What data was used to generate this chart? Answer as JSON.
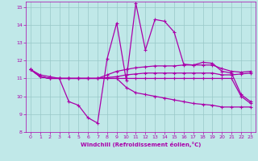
{
  "xlabel": "Windchill (Refroidissement éolien,°C)",
  "xlim": [
    -0.5,
    23.5
  ],
  "ylim": [
    8,
    15.3
  ],
  "xticks": [
    0,
    1,
    2,
    3,
    4,
    5,
    6,
    7,
    8,
    9,
    10,
    11,
    12,
    13,
    14,
    15,
    16,
    17,
    18,
    19,
    20,
    21,
    22,
    23
  ],
  "yticks": [
    8,
    9,
    10,
    11,
    12,
    13,
    14,
    15
  ],
  "bg_color": "#c0e8e8",
  "grid_color": "#98c8c8",
  "line_color": "#aa00aa",
  "line1_x": [
    0,
    1,
    2,
    3,
    4,
    5,
    6,
    7,
    8,
    9,
    10,
    11,
    12,
    13,
    14,
    15,
    16,
    17,
    18,
    19,
    20,
    21,
    22,
    23
  ],
  "line1_y": [
    11.5,
    11.2,
    11.1,
    11.0,
    9.7,
    9.5,
    8.8,
    8.5,
    12.1,
    14.1,
    10.9,
    15.2,
    12.6,
    14.3,
    14.2,
    13.6,
    11.8,
    11.75,
    11.9,
    11.85,
    11.4,
    11.3,
    10.1,
    9.7
  ],
  "line2_x": [
    0,
    1,
    2,
    3,
    4,
    5,
    6,
    7,
    8,
    9,
    10,
    11,
    12,
    13,
    14,
    15,
    16,
    17,
    18,
    19,
    20,
    21,
    22,
    23
  ],
  "line2_y": [
    11.5,
    11.1,
    11.0,
    11.0,
    11.0,
    11.0,
    11.0,
    11.0,
    11.2,
    11.4,
    11.5,
    11.6,
    11.65,
    11.7,
    11.7,
    11.7,
    11.75,
    11.75,
    11.75,
    11.75,
    11.55,
    11.4,
    11.35,
    11.4
  ],
  "line3_x": [
    0,
    1,
    2,
    3,
    4,
    5,
    6,
    7,
    8,
    9,
    10,
    11,
    12,
    13,
    14,
    15,
    16,
    17,
    18,
    19,
    20,
    21,
    22,
    23
  ],
  "line3_y": [
    11.5,
    11.1,
    11.0,
    11.0,
    11.0,
    11.0,
    11.0,
    11.0,
    11.05,
    11.1,
    11.2,
    11.25,
    11.3,
    11.3,
    11.3,
    11.3,
    11.3,
    11.3,
    11.3,
    11.3,
    11.2,
    11.2,
    11.25,
    11.3
  ],
  "line4_x": [
    0,
    1,
    2,
    3,
    4,
    5,
    6,
    7,
    8,
    9,
    10,
    11,
    12,
    13,
    14,
    15,
    16,
    17,
    18,
    19,
    20,
    21,
    22,
    23
  ],
  "line4_y": [
    11.5,
    11.1,
    11.0,
    11.0,
    11.0,
    11.0,
    11.0,
    11.0,
    11.0,
    11.0,
    11.0,
    11.0,
    11.0,
    11.0,
    11.0,
    11.0,
    11.0,
    11.0,
    11.0,
    11.0,
    11.0,
    11.0,
    10.0,
    9.6
  ],
  "line5_x": [
    0,
    1,
    2,
    3,
    4,
    5,
    6,
    7,
    8,
    9,
    10,
    11,
    12,
    13,
    14,
    15,
    16,
    17,
    18,
    19,
    20,
    21,
    22,
    23
  ],
  "line5_y": [
    11.5,
    11.1,
    11.0,
    11.0,
    11.0,
    11.0,
    11.0,
    11.0,
    11.0,
    11.0,
    10.5,
    10.2,
    10.1,
    10.0,
    9.9,
    9.8,
    9.7,
    9.6,
    9.55,
    9.5,
    9.4,
    9.4,
    9.4,
    9.4
  ]
}
